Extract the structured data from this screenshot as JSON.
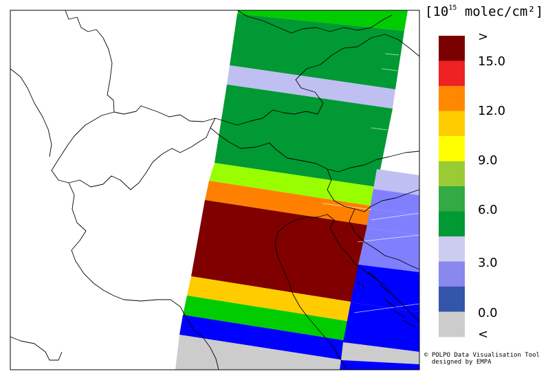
{
  "legend": {
    "title_prefix": "[10",
    "title_exponent": "15",
    "title_suffix": " molec/cm²]",
    "colors": [
      "#7a0000",
      "#ee2222",
      "#ff8800",
      "#ffcc00",
      "#ffff00",
      "#99cc33",
      "#33aa44",
      "#009933",
      "#ccccf0",
      "#8888ee",
      "#3355aa",
      "#cccccc"
    ],
    "labels": [
      ">",
      "15.0",
      "12.0",
      "9.0",
      "6.0",
      "3.0",
      "0.0",
      "<"
    ]
  },
  "credit": {
    "line1": "© POLPO Data Visualisation Tool",
    "line2": "  designed by EMPA"
  },
  "swath_colors": {
    "green": "#009933",
    "lavender": "#bfbff2",
    "lime": "#99ff00",
    "orange": "#ff8000",
    "darkred": "#800000",
    "yellow": "#ffcc00",
    "brightgreen": "#00cc00",
    "blue": "#0000ff",
    "grey": "#cccccc",
    "periwinkle": "#8080ff"
  }
}
